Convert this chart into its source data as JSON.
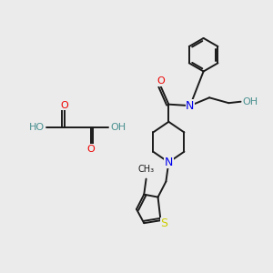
{
  "background_color": "#ebebeb",
  "figure_size": [
    3.0,
    3.0
  ],
  "dpi": 100,
  "atom_colors": {
    "C": "#1a1a1a",
    "N": "#0000ee",
    "O": "#ee0000",
    "S": "#cccc00",
    "H": "#4a9090"
  },
  "bond_color": "#1a1a1a",
  "bond_width": 1.4,
  "font_size": 7.5,
  "oxalic": {
    "c1": [
      2.2,
      5.2
    ],
    "c2": [
      3.2,
      5.2
    ]
  }
}
